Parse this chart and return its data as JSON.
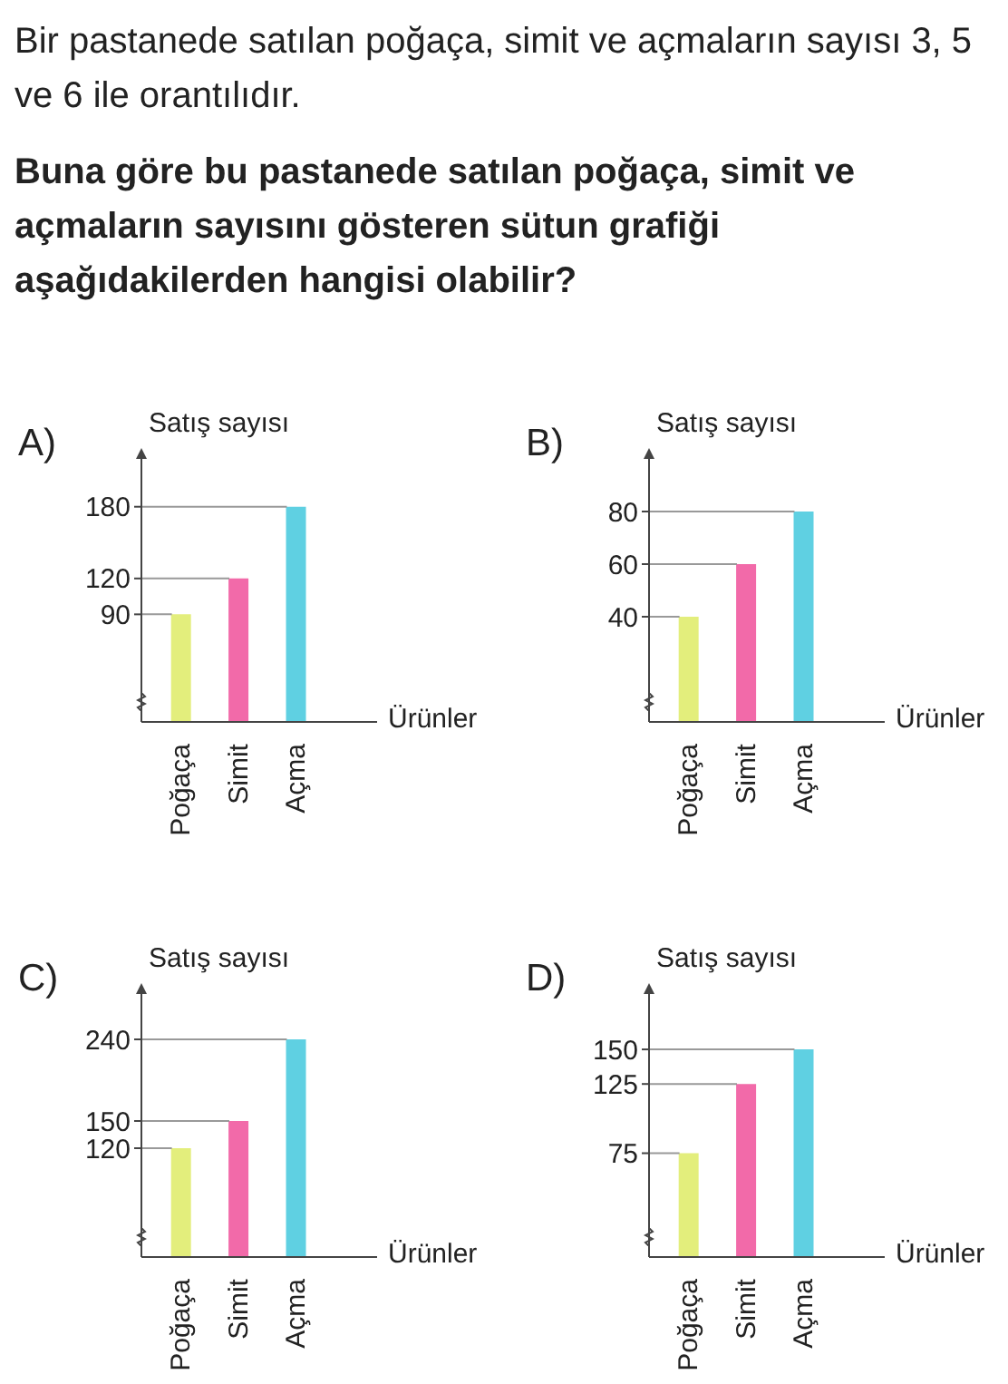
{
  "chart_data": [
    {
      "type": "bar",
      "title": "A)",
      "ylabel": "Satış sayısı",
      "xlabel": "Ürünler",
      "annotations": [
        "Bir pastanede satılan poğaça, simit ve açmaların sayısı 3, 5 ve 6 ile orantılıdır.",
        "Buna göre bu pastanede satılan poğaça, simit ve açmaların sayısını gösteren sütun grafiği aşağıdakilerden hangisi olabilir?"
      ],
      "categories": [
        "Poğaça",
        "Simit",
        "Açma"
      ],
      "values": [
        90,
        120,
        180
      ],
      "colors": [
        "#e3ee7c",
        "#f26aa9",
        "#5fd0e2"
      ],
      "ylim": [
        0,
        220
      ],
      "yticks": [
        90,
        120,
        180
      ],
      "ref_lines": [
        {
          "axis": "y",
          "value": 90,
          "color": "#999999"
        },
        {
          "axis": "y",
          "value": 120,
          "color": "#999999"
        },
        {
          "axis": "y",
          "value": 180,
          "color": "#999999"
        }
      ]
    },
    {
      "type": "bar",
      "title": "B)",
      "ylabel": "Satış sayısı",
      "xlabel": "Ürünler",
      "categories": [
        "Poğaça",
        "Simit",
        "Açma"
      ],
      "values": [
        40,
        60,
        80
      ],
      "colors": [
        "#e3ee7c",
        "#f26aa9",
        "#5fd0e2"
      ],
      "ylim": [
        0,
        100
      ],
      "yticks": [
        40,
        60,
        80
      ],
      "ref_lines": [
        {
          "axis": "y",
          "value": 40,
          "color": "#999999"
        },
        {
          "axis": "y",
          "value": 60,
          "color": "#999999"
        },
        {
          "axis": "y",
          "value": 80,
          "color": "#999999"
        }
      ]
    },
    {
      "type": "bar",
      "title": "C)",
      "ylabel": "Satış sayısı",
      "xlabel": "Ürünler",
      "categories": [
        "Poğaça",
        "Simit",
        "Açma"
      ],
      "values": [
        120,
        150,
        240
      ],
      "colors": [
        "#e3ee7c",
        "#f26aa9",
        "#5fd0e2"
      ],
      "ylim": [
        0,
        290
      ],
      "yticks": [
        120,
        150,
        240
      ],
      "ref_lines": [
        {
          "axis": "y",
          "value": 120,
          "color": "#999999"
        },
        {
          "axis": "y",
          "value": 150,
          "color": "#999999"
        },
        {
          "axis": "y",
          "value": 240,
          "color": "#999999"
        }
      ]
    },
    {
      "type": "bar",
      "title": "D)",
      "ylabel": "Satış sayısı",
      "xlabel": "Ürünler",
      "categories": [
        "Poğaça",
        "Simit",
        "Açma"
      ],
      "values": [
        75,
        125,
        150
      ],
      "colors": [
        "#e3ee7c",
        "#f26aa9",
        "#5fd0e2"
      ],
      "ylim": [
        0,
        190
      ],
      "yticks": [
        75,
        125,
        150
      ],
      "ref_lines": [
        {
          "axis": "y",
          "value": 75,
          "color": "#999999"
        },
        {
          "axis": "y",
          "value": 125,
          "color": "#999999"
        },
        {
          "axis": "y",
          "value": 150,
          "color": "#999999"
        }
      ]
    }
  ]
}
